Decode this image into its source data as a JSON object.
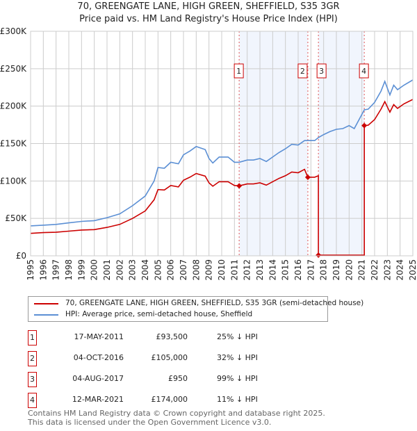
{
  "chart_data": {
    "type": "line",
    "title": "70, GREENGATE LANE, HIGH GREEN, SHEFFIELD, S35 3GR",
    "subtitle": "Price paid vs. HM Land Registry's House Price Index (HPI)",
    "xlim": [
      1995,
      2025
    ],
    "ylim": [
      0,
      300000
    ],
    "x_ticks": [
      "1995",
      "1996",
      "1997",
      "1998",
      "1999",
      "2000",
      "2001",
      "2002",
      "2003",
      "2004",
      "2005",
      "2006",
      "2007",
      "2008",
      "2009",
      "2010",
      "2011",
      "2012",
      "2013",
      "2014",
      "2015",
      "2016",
      "2017",
      "2018",
      "2019",
      "2020",
      "2021",
      "2022",
      "2023",
      "2024",
      "2025"
    ],
    "y_ticks": [
      {
        "v": 0,
        "label": "£0"
      },
      {
        "v": 50000,
        "label": "£50K"
      },
      {
        "v": 100000,
        "label": "£100K"
      },
      {
        "v": 150000,
        "label": "£150K"
      },
      {
        "v": 200000,
        "label": "£200K"
      },
      {
        "v": 250000,
        "label": "£250K"
      },
      {
        "v": 300000,
        "label": "£300K"
      }
    ],
    "grid": true,
    "shaded_ranges": [
      [
        2011.37,
        2016.76
      ],
      [
        2017.59,
        2021.19
      ]
    ],
    "series": [
      {
        "name": "70, GREENGATE LANE, HIGH GREEN, SHEFFIELD, S35 3GR (semi-detached house)",
        "color": "#cc0000",
        "points": [
          [
            1995,
            30
          ],
          [
            1996,
            31
          ],
          [
            1997,
            31.5
          ],
          [
            1998,
            33
          ],
          [
            1999,
            34.5
          ],
          [
            2000,
            35
          ],
          [
            2001,
            38
          ],
          [
            2002,
            42
          ],
          [
            2003,
            50
          ],
          [
            2004,
            60
          ],
          [
            2004.7,
            75
          ],
          [
            2005,
            88.5
          ],
          [
            2005.5,
            88
          ],
          [
            2006,
            94
          ],
          [
            2006.6,
            92
          ],
          [
            2007,
            101
          ],
          [
            2007.5,
            105
          ],
          [
            2008,
            110
          ],
          [
            2008.7,
            106.5
          ],
          [
            2009,
            97.5
          ],
          [
            2009.3,
            93
          ],
          [
            2009.8,
            99
          ],
          [
            2010.5,
            99
          ],
          [
            2011,
            94
          ],
          [
            2011.37,
            93.5
          ],
          [
            2012,
            96
          ],
          [
            2012.5,
            96
          ],
          [
            2013,
            97.5
          ],
          [
            2013.5,
            94.5
          ],
          [
            2014,
            99
          ],
          [
            2014.5,
            103.5
          ],
          [
            2015,
            107
          ],
          [
            2015.5,
            112
          ],
          [
            2016,
            111
          ],
          [
            2016.5,
            115.5
          ],
          [
            2016.76,
            105
          ],
          [
            2017.3,
            105
          ],
          [
            2017.59,
            107
          ],
          [
            2017.59,
            0.95
          ],
          [
            2021.19,
            0.95
          ],
          [
            2021.19,
            174
          ],
          [
            2021.5,
            174.5
          ],
          [
            2022,
            182
          ],
          [
            2022.5,
            196
          ],
          [
            2022.8,
            206
          ],
          [
            2023.2,
            192
          ],
          [
            2023.5,
            202
          ],
          [
            2023.8,
            197
          ],
          [
            2024.3,
            203
          ],
          [
            2025,
            209
          ]
        ]
      },
      {
        "name": "HPI: Average price, semi-detached house, Sheffield",
        "color": "#5b8fd4",
        "points": [
          [
            1995,
            40
          ],
          [
            1996,
            41
          ],
          [
            1997,
            42
          ],
          [
            1998,
            44
          ],
          [
            1999,
            46
          ],
          [
            2000,
            47
          ],
          [
            2001,
            51
          ],
          [
            2002,
            56
          ],
          [
            2003,
            67
          ],
          [
            2004,
            80
          ],
          [
            2004.7,
            100
          ],
          [
            2005,
            118
          ],
          [
            2005.5,
            117
          ],
          [
            2006,
            125
          ],
          [
            2006.6,
            123
          ],
          [
            2007,
            135
          ],
          [
            2007.5,
            140
          ],
          [
            2008,
            146
          ],
          [
            2008.7,
            142
          ],
          [
            2009,
            130
          ],
          [
            2009.3,
            124
          ],
          [
            2009.8,
            132
          ],
          [
            2010.5,
            132
          ],
          [
            2011,
            125
          ],
          [
            2011.37,
            125
          ],
          [
            2012,
            128
          ],
          [
            2012.5,
            128
          ],
          [
            2013,
            130
          ],
          [
            2013.5,
            126
          ],
          [
            2014,
            132
          ],
          [
            2014.5,
            138
          ],
          [
            2015,
            143
          ],
          [
            2015.5,
            149
          ],
          [
            2016,
            148
          ],
          [
            2016.5,
            154
          ],
          [
            2016.76,
            154
          ],
          [
            2017.3,
            154
          ],
          [
            2017.59,
            158
          ],
          [
            2018,
            162
          ],
          [
            2018.5,
            166
          ],
          [
            2019,
            169
          ],
          [
            2019.5,
            170
          ],
          [
            2020,
            174
          ],
          [
            2020.4,
            170
          ],
          [
            2021.19,
            195
          ],
          [
            2021.5,
            196
          ],
          [
            2022,
            205
          ],
          [
            2022.5,
            220
          ],
          [
            2022.8,
            233
          ],
          [
            2023.2,
            215
          ],
          [
            2023.5,
            228
          ],
          [
            2023.8,
            222
          ],
          [
            2024.3,
            228
          ],
          [
            2025,
            235
          ]
        ]
      }
    ],
    "sales": [
      {
        "id": "1",
        "x": 2011.37,
        "price": 93500,
        "date": "17-MAY-2011",
        "price_label": "£93,500",
        "hpi": "25% ↓ HPI"
      },
      {
        "id": "2",
        "x": 2016.76,
        "price": 105000,
        "date": "04-OCT-2016",
        "price_label": "£105,000",
        "hpi": "32% ↓ HPI"
      },
      {
        "id": "3",
        "x": 2017.59,
        "price": 950,
        "date": "04-AUG-2017",
        "price_label": "£950",
        "hpi": "99% ↓ HPI"
      },
      {
        "id": "4",
        "x": 2021.19,
        "price": 174000,
        "date": "12-MAR-2021",
        "price_label": "£174,000",
        "hpi": "11% ↓ HPI"
      }
    ]
  },
  "legend": {
    "property": "70, GREENGATE LANE, HIGH GREEN, SHEFFIELD, S35 3GR (semi-detached house)",
    "hpi": "HPI: Average price, semi-detached house, Sheffield"
  },
  "footer": {
    "line1": "Contains HM Land Registry data © Crown copyright and database right 2025.",
    "line2": "This data is licensed under the Open Government Licence v3.0."
  }
}
